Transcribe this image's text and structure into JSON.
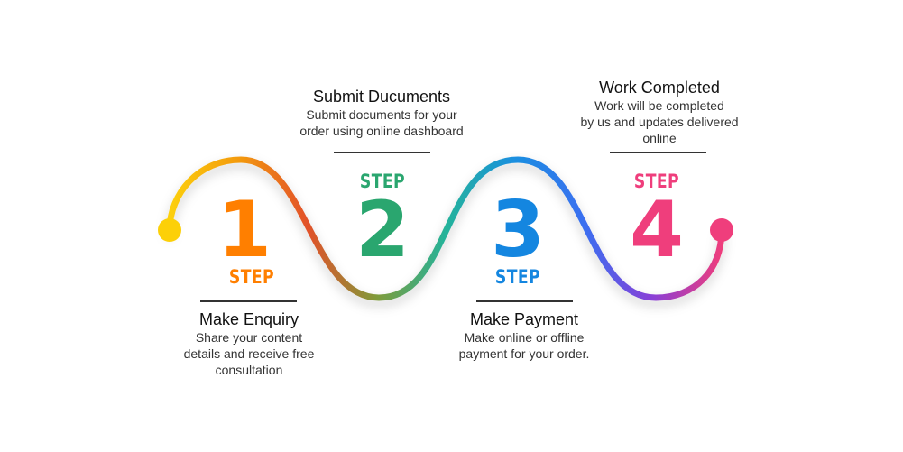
{
  "steps": [
    {
      "number": "1",
      "step_label": "STEP",
      "title": "Make Enquiry",
      "description": "Share your content\ndetails and receive free\nconsultation",
      "color": "#ff7f00"
    },
    {
      "number": "2",
      "step_label": "STEP",
      "title": "Submit Ducuments",
      "description": "Submit documents for your\norder using online dashboard",
      "color": "#2aa66f"
    },
    {
      "number": "3",
      "step_label": "STEP",
      "title": "Make Payment",
      "description": "Make online or offline\npayment for your order.",
      "color": "#1486e0"
    },
    {
      "number": "4",
      "step_label": "STEP",
      "title": "Work Completed",
      "description": "Work will be completed\nby us and updates delivered\nonline",
      "color": "#ef3e7c"
    }
  ],
  "colors": {
    "start_dot": "#fcd008",
    "end_dot": "#ef3e7c",
    "gradient": [
      "#fcd008",
      "#f39a0e",
      "#e2512a",
      "#7f9b3a",
      "#25b39a",
      "#1a8fe0",
      "#3a6ff0",
      "#8a3fd6",
      "#ef3e7c"
    ]
  }
}
